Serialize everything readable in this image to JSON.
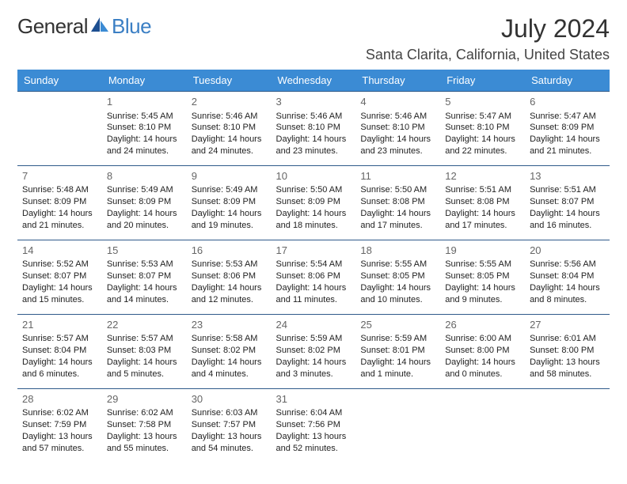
{
  "brand": {
    "part1": "General",
    "part2": "Blue"
  },
  "title": {
    "month": "July 2024",
    "location": "Santa Clarita, California, United States"
  },
  "colors": {
    "header_bg": "#3b8bd4",
    "header_text": "#ffffff",
    "row_border": "#2f5a8a",
    "brand_blue": "#3b7fc4"
  },
  "weekdays": [
    "Sunday",
    "Monday",
    "Tuesday",
    "Wednesday",
    "Thursday",
    "Friday",
    "Saturday"
  ],
  "weeks": [
    [
      null,
      {
        "n": "1",
        "sr": "5:45 AM",
        "ss": "8:10 PM",
        "dl": "14 hours and 24 minutes."
      },
      {
        "n": "2",
        "sr": "5:46 AM",
        "ss": "8:10 PM",
        "dl": "14 hours and 24 minutes."
      },
      {
        "n": "3",
        "sr": "5:46 AM",
        "ss": "8:10 PM",
        "dl": "14 hours and 23 minutes."
      },
      {
        "n": "4",
        "sr": "5:46 AM",
        "ss": "8:10 PM",
        "dl": "14 hours and 23 minutes."
      },
      {
        "n": "5",
        "sr": "5:47 AM",
        "ss": "8:10 PM",
        "dl": "14 hours and 22 minutes."
      },
      {
        "n": "6",
        "sr": "5:47 AM",
        "ss": "8:09 PM",
        "dl": "14 hours and 21 minutes."
      }
    ],
    [
      {
        "n": "7",
        "sr": "5:48 AM",
        "ss": "8:09 PM",
        "dl": "14 hours and 21 minutes."
      },
      {
        "n": "8",
        "sr": "5:49 AM",
        "ss": "8:09 PM",
        "dl": "14 hours and 20 minutes."
      },
      {
        "n": "9",
        "sr": "5:49 AM",
        "ss": "8:09 PM",
        "dl": "14 hours and 19 minutes."
      },
      {
        "n": "10",
        "sr": "5:50 AM",
        "ss": "8:09 PM",
        "dl": "14 hours and 18 minutes."
      },
      {
        "n": "11",
        "sr": "5:50 AM",
        "ss": "8:08 PM",
        "dl": "14 hours and 17 minutes."
      },
      {
        "n": "12",
        "sr": "5:51 AM",
        "ss": "8:08 PM",
        "dl": "14 hours and 17 minutes."
      },
      {
        "n": "13",
        "sr": "5:51 AM",
        "ss": "8:07 PM",
        "dl": "14 hours and 16 minutes."
      }
    ],
    [
      {
        "n": "14",
        "sr": "5:52 AM",
        "ss": "8:07 PM",
        "dl": "14 hours and 15 minutes."
      },
      {
        "n": "15",
        "sr": "5:53 AM",
        "ss": "8:07 PM",
        "dl": "14 hours and 14 minutes."
      },
      {
        "n": "16",
        "sr": "5:53 AM",
        "ss": "8:06 PM",
        "dl": "14 hours and 12 minutes."
      },
      {
        "n": "17",
        "sr": "5:54 AM",
        "ss": "8:06 PM",
        "dl": "14 hours and 11 minutes."
      },
      {
        "n": "18",
        "sr": "5:55 AM",
        "ss": "8:05 PM",
        "dl": "14 hours and 10 minutes."
      },
      {
        "n": "19",
        "sr": "5:55 AM",
        "ss": "8:05 PM",
        "dl": "14 hours and 9 minutes."
      },
      {
        "n": "20",
        "sr": "5:56 AM",
        "ss": "8:04 PM",
        "dl": "14 hours and 8 minutes."
      }
    ],
    [
      {
        "n": "21",
        "sr": "5:57 AM",
        "ss": "8:04 PM",
        "dl": "14 hours and 6 minutes."
      },
      {
        "n": "22",
        "sr": "5:57 AM",
        "ss": "8:03 PM",
        "dl": "14 hours and 5 minutes."
      },
      {
        "n": "23",
        "sr": "5:58 AM",
        "ss": "8:02 PM",
        "dl": "14 hours and 4 minutes."
      },
      {
        "n": "24",
        "sr": "5:59 AM",
        "ss": "8:02 PM",
        "dl": "14 hours and 3 minutes."
      },
      {
        "n": "25",
        "sr": "5:59 AM",
        "ss": "8:01 PM",
        "dl": "14 hours and 1 minute."
      },
      {
        "n": "26",
        "sr": "6:00 AM",
        "ss": "8:00 PM",
        "dl": "14 hours and 0 minutes."
      },
      {
        "n": "27",
        "sr": "6:01 AM",
        "ss": "8:00 PM",
        "dl": "13 hours and 58 minutes."
      }
    ],
    [
      {
        "n": "28",
        "sr": "6:02 AM",
        "ss": "7:59 PM",
        "dl": "13 hours and 57 minutes."
      },
      {
        "n": "29",
        "sr": "6:02 AM",
        "ss": "7:58 PM",
        "dl": "13 hours and 55 minutes."
      },
      {
        "n": "30",
        "sr": "6:03 AM",
        "ss": "7:57 PM",
        "dl": "13 hours and 54 minutes."
      },
      {
        "n": "31",
        "sr": "6:04 AM",
        "ss": "7:56 PM",
        "dl": "13 hours and 52 minutes."
      },
      null,
      null,
      null
    ]
  ],
  "labels": {
    "sunrise": "Sunrise:",
    "sunset": "Sunset:",
    "daylight": "Daylight:"
  }
}
